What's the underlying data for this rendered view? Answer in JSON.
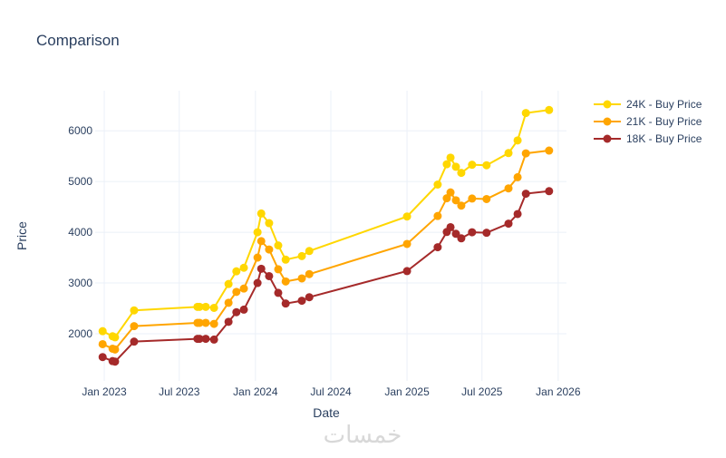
{
  "chart_data": {
    "type": "line",
    "title": "Comparison",
    "xlabel": "Date",
    "ylabel": "Price",
    "xlim": [
      "2022-12-10",
      "2026-01-21"
    ],
    "ylim": [
      1070,
      6790
    ],
    "grid": true,
    "legend_position": "top-right",
    "x_ticks": [
      {
        "date": "2023-01-01",
        "label": "Jan 2023"
      },
      {
        "date": "2023-07-01",
        "label": "Jul 2023"
      },
      {
        "date": "2024-01-01",
        "label": "Jan 2024"
      },
      {
        "date": "2024-07-01",
        "label": "Jul 2024"
      },
      {
        "date": "2025-01-01",
        "label": "Jan 2025"
      },
      {
        "date": "2025-07-01",
        "label": "Jul 2025"
      },
      {
        "date": "2026-01-01",
        "label": "Jan 2026"
      }
    ],
    "y_ticks": [
      {
        "value": 2000,
        "label": "2000"
      },
      {
        "value": 3000,
        "label": "3000"
      },
      {
        "value": 4000,
        "label": "4000"
      },
      {
        "value": 5000,
        "label": "5000"
      },
      {
        "value": 6000,
        "label": "6000"
      }
    ],
    "x": [
      "2022-12-28",
      "2023-01-21",
      "2023-01-27",
      "2023-03-14",
      "2023-08-14",
      "2023-08-19",
      "2023-09-03",
      "2023-09-23",
      "2023-10-28",
      "2023-11-16",
      "2023-12-04",
      "2024-01-06",
      "2024-01-15",
      "2024-02-03",
      "2024-02-25",
      "2024-03-14",
      "2024-04-22",
      "2024-05-10",
      "2025-01-01",
      "2025-03-16",
      "2025-04-07",
      "2025-04-16",
      "2025-04-29",
      "2025-05-12",
      "2025-06-07",
      "2025-07-12",
      "2025-09-03",
      "2025-09-25",
      "2025-10-15",
      "2025-12-10"
    ],
    "series": [
      {
        "name": "24K - Buy Price",
        "color": "#FFD700",
        "values": [
          2050,
          1950,
          1930,
          2460,
          2530,
          2530,
          2530,
          2510,
          2980,
          3230,
          3300,
          4000,
          4370,
          4180,
          3740,
          3460,
          3530,
          3630,
          4310,
          4940,
          5340,
          5470,
          5290,
          5170,
          5330,
          5320,
          5560,
          5810,
          6350,
          6410
        ]
      },
      {
        "name": "21K - Buy Price",
        "color": "#FFA500",
        "values": [
          1795,
          1705,
          1690,
          2150,
          2215,
          2215,
          2215,
          2195,
          2610,
          2825,
          2890,
          3500,
          3825,
          3660,
          3270,
          3030,
          3090,
          3175,
          3770,
          4320,
          4670,
          4785,
          4630,
          4525,
          4665,
          4655,
          4865,
          5085,
          5555,
          5610
        ]
      },
      {
        "name": "18K - Buy Price",
        "color": "#A52A2A",
        "values": [
          1540,
          1460,
          1450,
          1845,
          1900,
          1900,
          1900,
          1885,
          2235,
          2425,
          2475,
          3000,
          3280,
          3135,
          2805,
          2595,
          2650,
          2720,
          3235,
          3705,
          4005,
          4100,
          3970,
          3880,
          4000,
          3990,
          4170,
          4360,
          4760,
          4810
        ]
      }
    ]
  },
  "watermark": "خمسات"
}
